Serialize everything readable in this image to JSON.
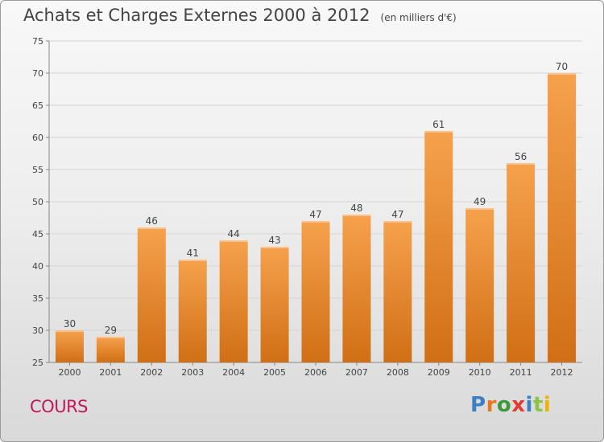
{
  "title": "Achats et Charges Externes 2000 à 2012",
  "subtitle": "(en milliers d'€)",
  "commune": "COURS",
  "logo": {
    "text": "Proxiti",
    "letters": [
      {
        "ch": "P",
        "color": "#3b7fc4"
      },
      {
        "ch": "r",
        "color": "#e87722"
      },
      {
        "ch": "o",
        "color": "#3a9a3a"
      },
      {
        "ch": "x",
        "color": "#e03c31"
      },
      {
        "ch": "i",
        "color": "#3b7fc4"
      },
      {
        "ch": "t",
        "color": "#8bc34a"
      },
      {
        "ch": "i",
        "color": "#f2b200"
      }
    ]
  },
  "colors": {
    "bar_top": "#f6a14d",
    "bar_bottom": "#d06f15",
    "text": "#444444",
    "commune": "#c2185b"
  },
  "chart_data": {
    "type": "bar",
    "categories": [
      "2000",
      "2001",
      "2002",
      "2003",
      "2004",
      "2005",
      "2006",
      "2007",
      "2008",
      "2009",
      "2010",
      "2011",
      "2012"
    ],
    "values": [
      30,
      29,
      46,
      41,
      44,
      43,
      47,
      48,
      47,
      61,
      49,
      56,
      70
    ],
    "ylim": [
      25,
      75
    ],
    "yticks": [
      25,
      30,
      35,
      40,
      45,
      50,
      55,
      60,
      65,
      70,
      75
    ],
    "grid": true,
    "data_labels": true
  }
}
